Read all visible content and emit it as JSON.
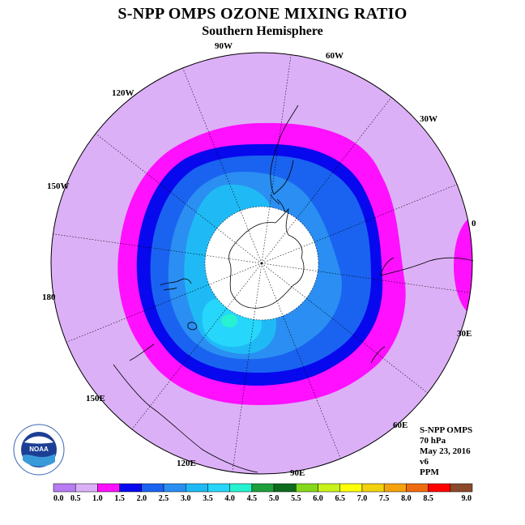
{
  "title": "S-NPP OMPS OZONE MIXING RATIO",
  "subtitle": "Southern Hemisphere",
  "info": {
    "instrument": "S-NPP OMPS",
    "level": "70 hPa",
    "date": "May 23, 2016",
    "version": "v6",
    "units": "PPM"
  },
  "logo_text": "NOAA",
  "longitude_labels": [
    "0",
    "30E",
    "60E",
    "90E",
    "120E",
    "150E",
    "180",
    "150W",
    "120W",
    "90W",
    "60W",
    "30W"
  ],
  "colorbar": {
    "ticks": [
      "0.0",
      "0.5",
      "1.0",
      "1.5",
      "2.0",
      "2.5",
      "3.0",
      "3.5",
      "4.0",
      "4.5",
      "5.0",
      "5.5",
      "6.0",
      "6.5",
      "7.0",
      "7.5",
      "8.0",
      "8.5",
      "9.0"
    ],
    "colors": [
      "#b77bf2",
      "#dcb0f7",
      "#ff10ff",
      "#0808ee",
      "#1a63f0",
      "#2a8ef2",
      "#1fbaf5",
      "#27d6fb",
      "#27f2cf",
      "#1e9e3c",
      "#0e6b1e",
      "#84d819",
      "#c8f21a",
      "#ffff0a",
      "#f2d10f",
      "#f4a30f",
      "#ef6b0f",
      "#ff0000",
      "#8b4a2a"
    ]
  }
}
